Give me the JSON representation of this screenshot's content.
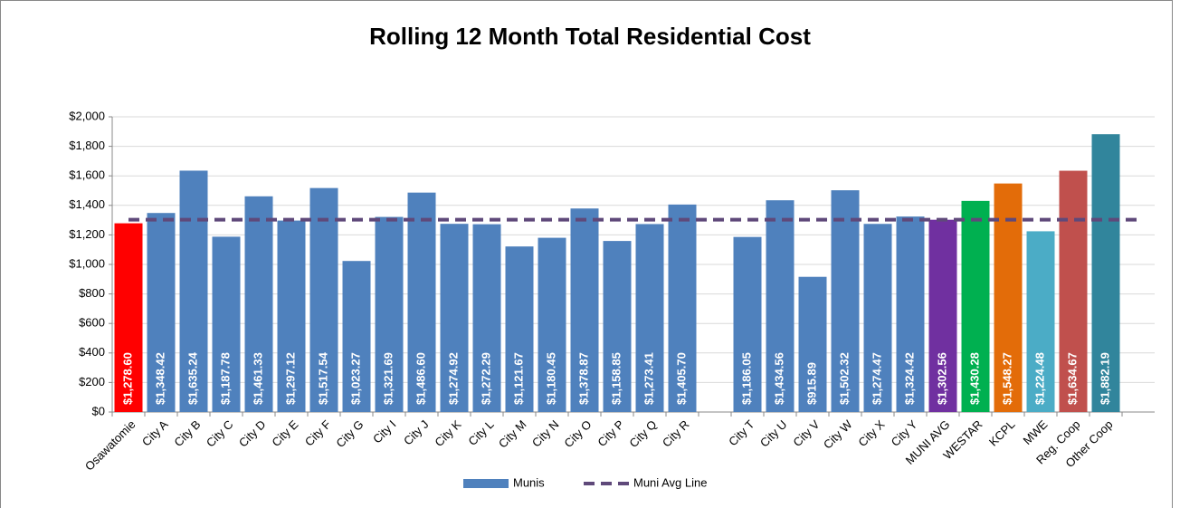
{
  "chart_data": {
    "type": "bar",
    "title": "Rolling 12 Month Total Residential Cost",
    "categories": [
      "Osawatomie",
      "City A",
      "City B",
      "City C",
      "City D",
      "City E",
      "City F",
      "City G",
      "City I",
      "City J",
      "City K",
      "City L",
      "City M",
      "City N",
      "City O",
      "City P",
      "City Q",
      "City R",
      null,
      "City T",
      "City U",
      "City V",
      "City W",
      "City X",
      "City Y",
      "MUNI AVG",
      "WESTAR",
      "KCPL",
      "MWE",
      "Reg. Coop",
      "Other Coop",
      null
    ],
    "series": [
      {
        "name": "Munis",
        "type": "bar",
        "color": "#4f81bd",
        "colors": [
          "#ff0000",
          "#4f81bd",
          "#4f81bd",
          "#4f81bd",
          "#4f81bd",
          "#4f81bd",
          "#4f81bd",
          "#4f81bd",
          "#4f81bd",
          "#4f81bd",
          "#4f81bd",
          "#4f81bd",
          "#4f81bd",
          "#4f81bd",
          "#4f81bd",
          "#4f81bd",
          "#4f81bd",
          "#4f81bd",
          null,
          "#4f81bd",
          "#4f81bd",
          "#4f81bd",
          "#4f81bd",
          "#4f81bd",
          "#4f81bd",
          "#7030a0",
          "#00b050",
          "#e36c09",
          "#4bacc6",
          "#c0504d",
          "#31859c",
          null
        ],
        "values": [
          1278.6,
          1348.42,
          1635.24,
          1187.78,
          1461.33,
          1297.12,
          1517.54,
          1023.27,
          1321.69,
          1486.6,
          1274.92,
          1272.29,
          1121.67,
          1180.45,
          1378.87,
          1158.85,
          1273.41,
          1405.7,
          null,
          1186.05,
          1434.56,
          915.89,
          1502.32,
          1274.47,
          1324.42,
          1302.56,
          1430.28,
          1548.27,
          1224.48,
          1634.67,
          1882.19,
          null
        ],
        "value_labels": [
          "$1,278.60",
          "$1,348.42",
          "$1,635.24",
          "$1,187.78",
          "$1,461.33",
          "$1,297.12",
          "$1,517.54",
          "$1,023.27",
          "$1,321.69",
          "$1,486.60",
          "$1,274.92",
          "$1,272.29",
          "$1,121.67",
          "$1,180.45",
          "$1,378.87",
          "$1,158.85",
          "$1,273.41",
          "$1,405.70",
          null,
          "$1,186.05",
          "$1,434.56",
          "$915.89",
          "$1,502.32",
          "$1,274.47",
          "$1,324.42",
          "$1,302.56",
          "$1,430.28",
          "$1,548.27",
          "$1,224.48",
          "$1,634.67",
          "$1,882.19",
          null
        ]
      },
      {
        "name": "Muni Avg Line",
        "type": "line",
        "color": "#5f497a",
        "dashed": true,
        "values": [
          1302.56,
          1302.56,
          1302.56,
          1302.56,
          1302.56,
          1302.56,
          1302.56,
          1302.56,
          1302.56,
          1302.56,
          1302.56,
          1302.56,
          1302.56,
          1302.56,
          1302.56,
          1302.56,
          1302.56,
          1302.56,
          1302.56,
          1302.56,
          1302.56,
          1302.56,
          1302.56,
          1302.56,
          1302.56,
          1302.56,
          1302.56,
          1302.56,
          1302.56,
          1302.56,
          1302.56,
          1302.56
        ]
      }
    ],
    "ylim": [
      0,
      2000
    ],
    "yticks": [
      {
        "value": 0,
        "label": "$0"
      },
      {
        "value": 200,
        "label": "$200"
      },
      {
        "value": 400,
        "label": "$400"
      },
      {
        "value": 600,
        "label": "$600"
      },
      {
        "value": 800,
        "label": "$800"
      },
      {
        "value": 1000,
        "label": "$1,000"
      },
      {
        "value": 1200,
        "label": "$1,200"
      },
      {
        "value": 1400,
        "label": "$1,400"
      },
      {
        "value": 1600,
        "label": "$1,600"
      },
      {
        "value": 1800,
        "label": "$1,800"
      },
      {
        "value": 2000,
        "label": "$2,000"
      }
    ],
    "grid": true,
    "legend": "bottom"
  }
}
